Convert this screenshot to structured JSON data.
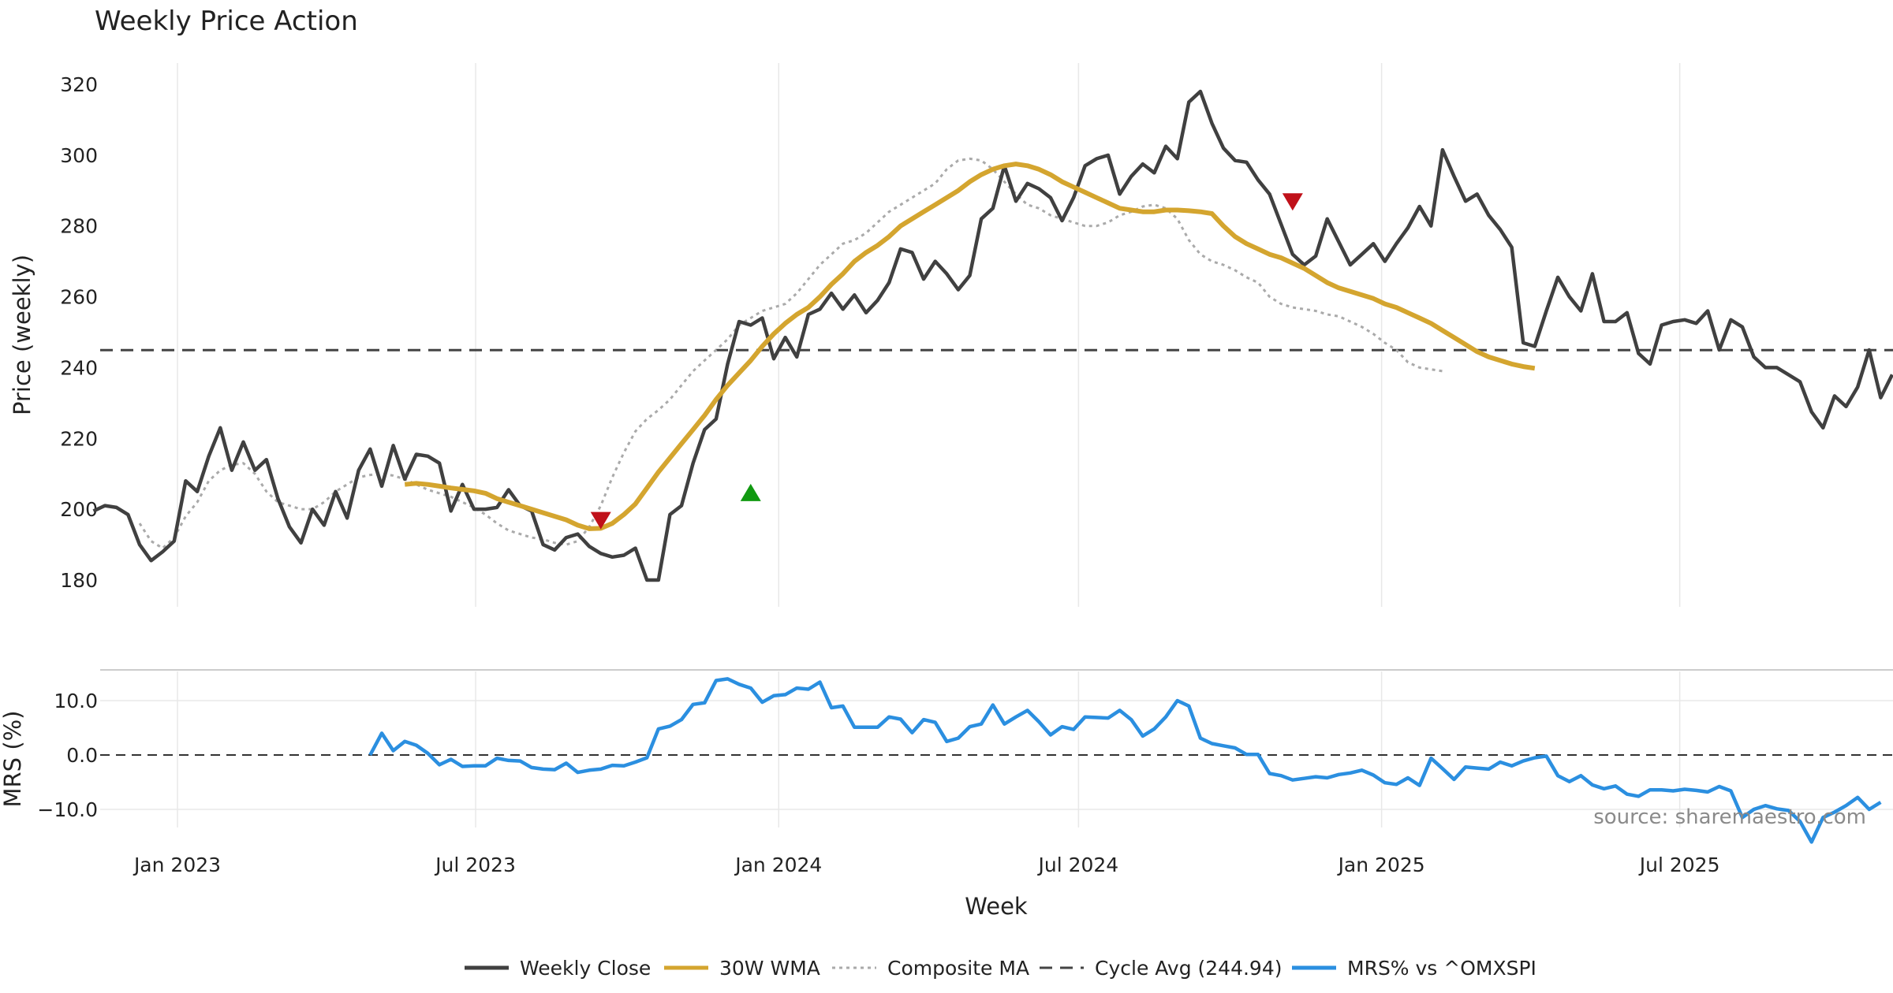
{
  "colors": {
    "close": "#404040",
    "wma": "#d4a52f",
    "composite": "#aaaaaa",
    "cycle": "#444444",
    "mrs": "#2b8fe0",
    "buy": "#119911",
    "sell": "#c0111a",
    "grid": "#e8e8e8"
  },
  "chart_data": [
    {
      "type": "line",
      "title": "Weekly Price Action",
      "ylabel": "Price (weekly)",
      "xlabel": "Week",
      "ylim": [
        171,
        322
      ],
      "yticks": [
        "180",
        "200",
        "220",
        "240",
        "260",
        "280",
        "300",
        "320"
      ],
      "xticks": [
        {
          "date": "2023-01-01",
          "label": "Jan 2023"
        },
        {
          "date": "2023-07-01",
          "label": "Jul 2023"
        },
        {
          "date": "2024-01-01",
          "label": "Jan 2024"
        },
        {
          "date": "2024-07-01",
          "label": "Jul 2024"
        },
        {
          "date": "2025-01-01",
          "label": "Jan 2025"
        },
        {
          "date": "2025-07-01",
          "label": "Jul 2025"
        }
      ],
      "x_range": [
        "2022-11-11",
        "2025-10-18"
      ],
      "series": [
        {
          "name": "Weekly Close",
          "style": "solid",
          "start": "2022-11-11",
          "step_days": 7,
          "values": [
            199.5,
            201,
            200.5,
            198.5,
            190,
            185.5,
            188,
            191,
            208,
            205,
            215,
            223,
            211,
            219,
            211,
            214,
            203,
            195,
            190.5,
            200,
            195.5,
            205,
            197.5,
            211,
            217,
            206.5,
            218,
            208.5,
            215.5,
            215,
            213,
            199.5,
            207,
            200,
            200,
            200.5,
            205.5,
            201,
            199.5,
            190,
            188.5,
            192,
            193,
            189.5,
            187.5,
            186.5,
            187,
            189,
            180,
            180,
            198.5,
            201,
            213,
            222.5,
            225.5,
            241,
            253,
            252,
            254,
            242.5,
            248.5,
            243,
            255,
            256.5,
            261,
            256.5,
            260.5,
            255.5,
            259,
            264,
            273.5,
            272.5,
            265,
            270,
            266.5,
            262,
            266,
            282,
            285,
            297,
            287,
            292,
            290.5,
            288,
            281.5,
            288,
            297,
            299,
            300,
            289,
            294,
            297.5,
            295,
            302.5,
            299,
            315,
            318,
            309,
            302,
            298.5,
            298,
            293,
            289,
            280.5,
            272,
            269,
            271.5,
            282,
            275.5,
            269,
            272,
            275,
            270,
            275,
            279.5,
            285.5,
            280,
            301.5,
            294,
            287,
            289,
            283,
            279,
            274,
            247,
            246,
            256,
            265.5,
            260,
            256,
            266.5,
            253,
            253,
            255.5,
            244,
            241,
            252,
            253,
            253.5,
            252.5,
            256,
            245,
            253.5,
            251.5,
            243,
            240,
            240,
            238,
            236,
            227.5,
            223,
            232,
            229,
            234.5,
            245,
            231.5,
            238
          ]
        },
        {
          "name": "30W WMA",
          "style": "solid",
          "start": "2023-05-19",
          "step_days": 7,
          "values": [
            207,
            207.3,
            207,
            206.5,
            206,
            205.6,
            205.2,
            204.5,
            203,
            202,
            201,
            200,
            199,
            198,
            197,
            195.5,
            194.5,
            194.6,
            196,
            198.5,
            201.5,
            206,
            210.5,
            214.5,
            218.5,
            222.5,
            226.5,
            231,
            235,
            238.5,
            242,
            246,
            249.5,
            252.5,
            255,
            257,
            260,
            263.5,
            266.5,
            270,
            272.5,
            274.5,
            277,
            280,
            282,
            284,
            286,
            288,
            290,
            292.5,
            294.5,
            296,
            297,
            297.5,
            297,
            296,
            294.5,
            292.5,
            291,
            289.5,
            288,
            286.5,
            285,
            284.5,
            284,
            284,
            284.5,
            284.5,
            284.3,
            284,
            283.5,
            280,
            277,
            275,
            273.5,
            272,
            271,
            269.5,
            268,
            266,
            264,
            262.5,
            261.5,
            260.5,
            259.5,
            258,
            257,
            255.5,
            254,
            252.5,
            250.5,
            248.5,
            246.5,
            244.5,
            243,
            242,
            241,
            240.3,
            239.8
          ]
        },
        {
          "name": "Composite MA",
          "style": "dotted",
          "start": "2022-12-09",
          "step_days": 7,
          "values": [
            196,
            191,
            189,
            192,
            198,
            202,
            208,
            211,
            212.5,
            213,
            210,
            205,
            202,
            201,
            200,
            200,
            202,
            205,
            207,
            209,
            209.7,
            210,
            209.5,
            208.5,
            207,
            205.5,
            204.5,
            203.5,
            202,
            200.5,
            198.5,
            196,
            194,
            193,
            192,
            191.5,
            190.5,
            190,
            191,
            195,
            201,
            209,
            216,
            222,
            225.5,
            228,
            231,
            235,
            239,
            242,
            245,
            248,
            252,
            254,
            256,
            257,
            258,
            261,
            265,
            269,
            272,
            275,
            276,
            278,
            281,
            284,
            286,
            288,
            290,
            292,
            296,
            298.5,
            299,
            298.5,
            296,
            292.5,
            289,
            286,
            285,
            283,
            282,
            281,
            280,
            280,
            281,
            283,
            284,
            285.5,
            286,
            285,
            282,
            276,
            272,
            270,
            269,
            267.5,
            265.5,
            264,
            260,
            258,
            257,
            256.5,
            256,
            255,
            254.5,
            253,
            251.5,
            249.5,
            247,
            245,
            241.5,
            240,
            239.5,
            239
          ]
        },
        {
          "name": "Cycle Avg (244.94)",
          "style": "dashed",
          "value": 244.94
        }
      ],
      "annotations": [
        {
          "type": "sell",
          "date": "2023-09-15",
          "value": 197
        },
        {
          "type": "buy",
          "date": "2023-12-15",
          "value": 204.5
        },
        {
          "type": "sell",
          "date": "2024-11-08",
          "value": 287
        }
      ]
    },
    {
      "type": "line",
      "ylabel": "MRS (%)",
      "ylim": [
        -17,
        15.5
      ],
      "yticks": [
        "10.0",
        "0.0",
        "−10.0"
      ],
      "ytick_values": [
        10,
        0,
        -10
      ],
      "reference_line": 0,
      "series": [
        {
          "name": "MRS% vs ^OMXSPI",
          "start": "2023-04-28",
          "step_days": 7,
          "values": [
            0,
            4,
            0.8,
            2.5,
            1.8,
            0.3,
            -1.8,
            -0.8,
            -2.1,
            -2,
            -2,
            -0.6,
            -1,
            -1.1,
            -2.3,
            -2.6,
            -2.7,
            -1.5,
            -3.2,
            -2.8,
            -2.6,
            -1.9,
            -2,
            -1.3,
            -0.5,
            4.8,
            5.3,
            6.5,
            9.3,
            9.6,
            13.7,
            14,
            13,
            12.3,
            9.7,
            10.9,
            11.1,
            12.3,
            12.1,
            13.4,
            8.7,
            9,
            5.1,
            5.1,
            5.1,
            7,
            6.6,
            4.1,
            6.5,
            6,
            2.5,
            3.1,
            5.2,
            5.7,
            9.2,
            5.7,
            7,
            8.2,
            6.1,
            3.7,
            5.2,
            4.7,
            7,
            6.9,
            6.8,
            8.2,
            6.5,
            3.5,
            4.8,
            7,
            10,
            9,
            3.1,
            2.1,
            1.7,
            1.3,
            0.1,
            0.1,
            -3.4,
            -3.8,
            -4.6,
            -4.3,
            -4,
            -4.2,
            -3.6,
            -3.3,
            -2.8,
            -3.7,
            -5.1,
            -5.4,
            -4.2,
            -5.6,
            -0.6,
            -2.5,
            -4.5,
            -2.2,
            -2.4,
            -2.6,
            -1.3,
            -2,
            -1.1,
            -0.5,
            -0.2,
            -3.8,
            -4.9,
            -3.8,
            -5.5,
            -6.2,
            -5.7,
            -7.2,
            -7.6,
            -6.4,
            -6.4,
            -6.6,
            -6.3,
            -6.5,
            -6.8,
            -5.8,
            -6.6,
            -11.5,
            -10,
            -9.3,
            -9.9,
            -10.2,
            -12.2,
            -16,
            -11.5,
            -10.5,
            -9.3,
            -7.8,
            -10,
            -8.7
          ]
        }
      ]
    }
  ],
  "source": "source: sharemaestro.com",
  "legend": [
    {
      "label": "Weekly Close",
      "style": "solid",
      "color": "#404040"
    },
    {
      "label": "30W WMA",
      "style": "solid",
      "color": "#d4a52f"
    },
    {
      "label": "Composite MA",
      "style": "dotted",
      "color": "#aaaaaa"
    },
    {
      "label": "Cycle Avg (244.94)",
      "style": "dashed",
      "color": "#444444"
    },
    {
      "label": "MRS% vs ^OMXSPI",
      "style": "solid",
      "color": "#2b8fe0"
    }
  ]
}
